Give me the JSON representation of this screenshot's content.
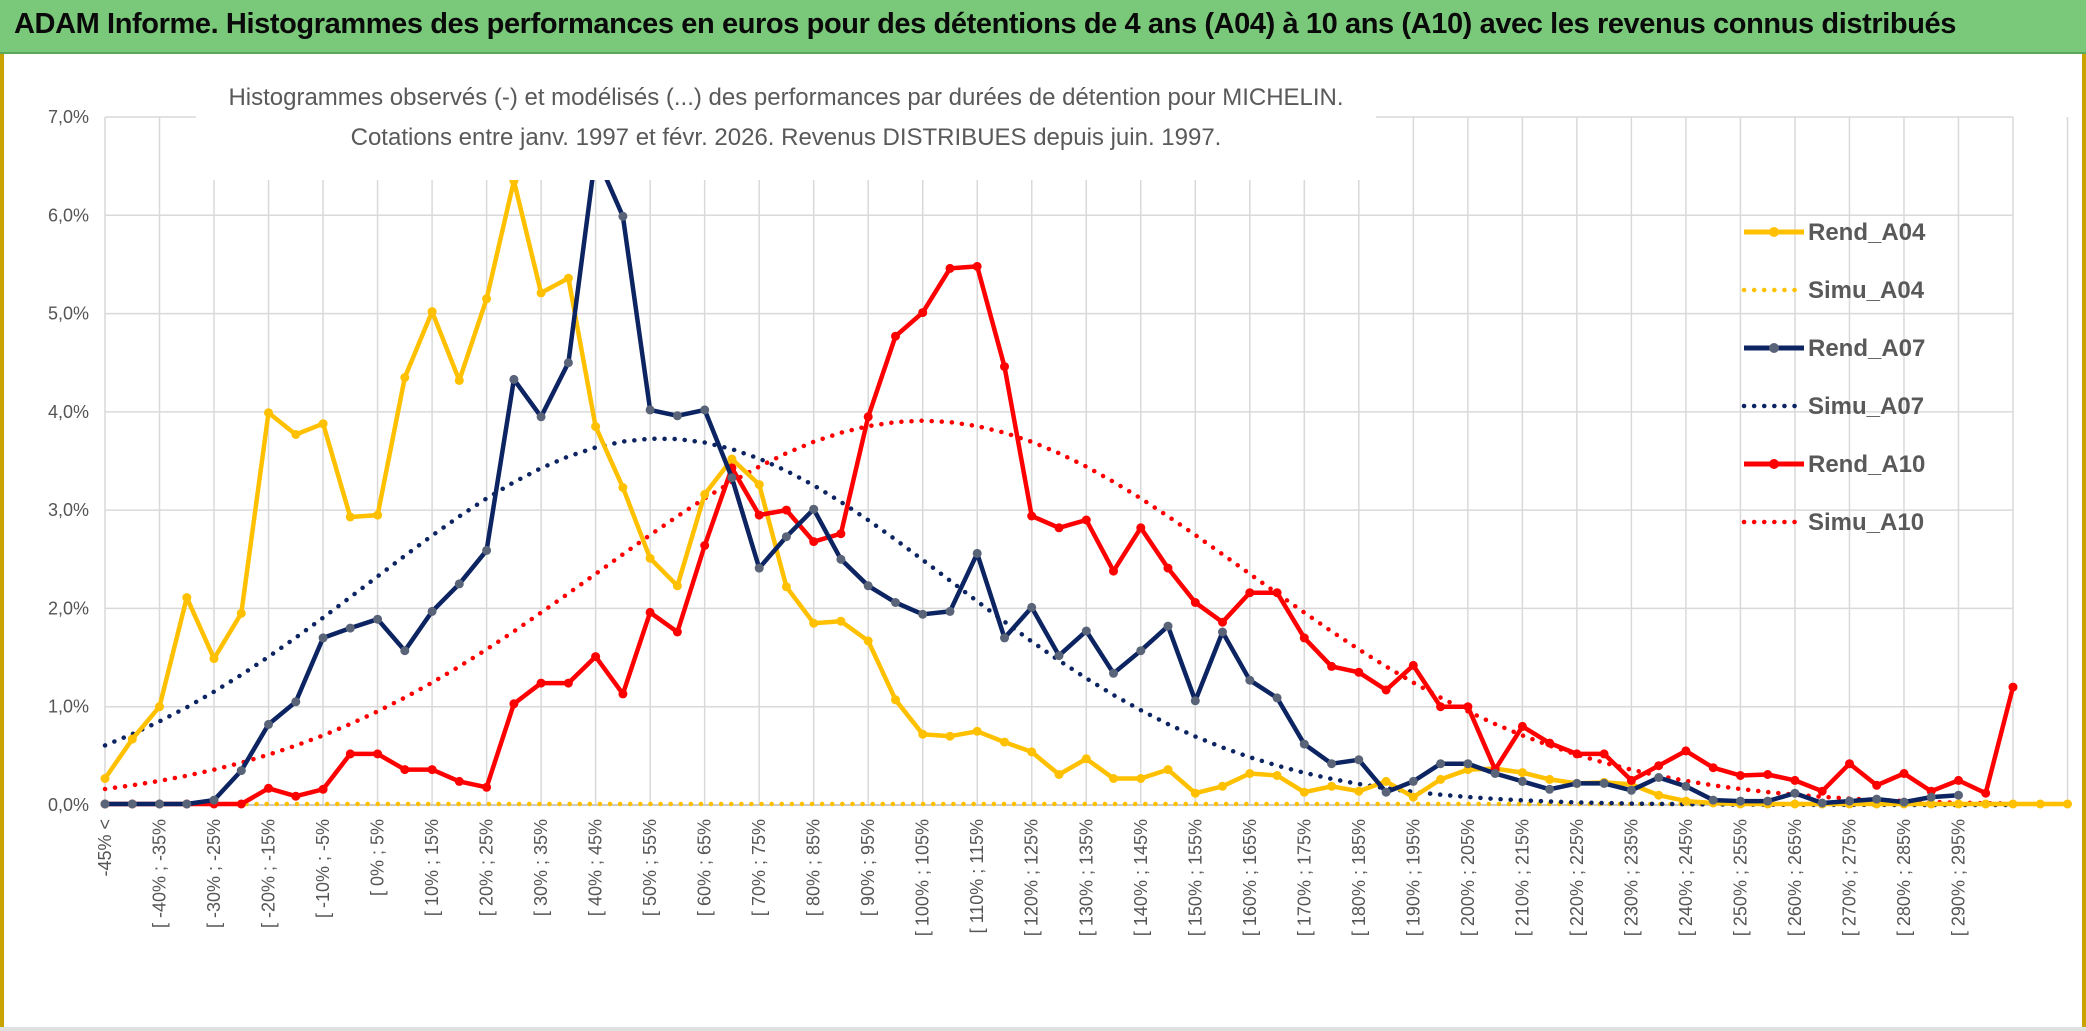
{
  "header": {
    "banner_title": "ADAM Informe. Histogrammes des performances en euros pour des détentions de 4 ans (A04) à 10 ans (A10) avec les revenus connus distribués"
  },
  "colors": {
    "banner": "#7ac97a",
    "A04": "#ffc000",
    "A07": "#0c2461",
    "A10": "#ff0000",
    "markerA07": "#5a6478"
  },
  "chart_data": {
    "type": "line",
    "title": "Histogrammes observés (-) et modélisés (...) des performances par durées de détention pour MICHELIN.",
    "subtitle": "Cotations entre janv. 1997 et févr. 2026. Revenus DISTRIBUES depuis juin. 1997.",
    "xlabel": "",
    "ylabel": "",
    "ylim": [
      0,
      7.0
    ],
    "y_ticks": [
      "0,0%",
      "1,0%",
      "2,0%",
      "3,0%",
      "4,0%",
      "5,0%",
      "6,0%",
      "7,0%"
    ],
    "x_ticks": [
      "-45% <",
      "[ -40% ; -35%",
      "[ -30% ; -25%",
      "[ -20% ; -15%",
      "[ -10% ; -5%",
      "[ 0% ; 5%",
      "[ 10% ; 15%",
      "[ 20% ; 25%",
      "[ 30% ; 35%",
      "[ 40% ; 45%",
      "[ 50% ; 55%",
      "[ 60% ; 65%",
      "[ 70% ; 75%",
      "[ 80% ; 85%",
      "[ 90% ; 95%",
      "[ 100% ; 105%",
      "[ 110% ; 115%",
      "[ 120% ; 125%",
      "[ 130% ; 135%",
      "[ 140% ; 145%",
      "[ 150% ; 155%",
      "[ 160% ; 165%",
      "[ 170% ; 175%",
      "[ 180% ; 185%",
      "[ 190% ; 195%",
      "[ 200% ; 205%",
      "[ 210% ; 215%",
      "[ 220% ; 225%",
      "[ 230% ; 235%",
      "[ 240% ; 245%",
      "[ 250% ; 255%",
      "[ 260% ; 265%",
      "[ 270% ; 275%",
      "[ 280% ; 285%",
      "[ 290% ; 295%"
    ],
    "grid": true,
    "legend_position": "right",
    "series": [
      {
        "name": "Rend_A04",
        "style": "solid",
        "color": "#ffc000",
        "values": [
          0.27,
          0.67,
          1.0,
          2.11,
          1.49,
          1.95,
          3.99,
          3.77,
          3.88,
          2.93,
          2.95,
          4.35,
          5.02,
          4.32,
          5.15,
          6.35,
          5.21,
          5.36,
          3.85,
          3.23,
          2.51,
          2.23,
          3.16,
          3.52,
          3.26,
          2.22,
          1.85,
          1.87,
          1.67,
          1.07,
          0.72,
          0.7,
          0.75,
          0.64,
          0.54,
          0.31,
          0.47,
          0.27,
          0.27,
          0.36,
          0.12,
          0.19,
          0.32,
          0.3,
          0.13,
          0.19,
          0.14,
          0.24,
          0.08,
          0.26,
          0.36,
          0.37,
          0.33,
          0.26,
          0.22,
          0.23,
          0.21,
          0.1,
          0.04,
          0.02,
          0.01,
          0.01,
          0.01,
          0.01,
          0.01,
          0.01,
          0.01,
          0.01,
          0.01,
          0.01,
          0.01,
          0.01,
          0.01
        ]
      },
      {
        "name": "Simu_A04",
        "style": "dotted",
        "color": "#ffc000",
        "values": [
          0.01,
          0.01,
          0.01,
          0.01,
          0.01,
          0.01,
          0.01,
          0.01,
          0.01,
          0.01,
          0.01,
          0.01,
          0.01,
          0.01,
          0.01,
          0.01,
          0.01,
          0.01,
          0.01,
          0.01,
          0.01,
          0.01,
          0.01,
          0.01,
          0.01,
          0.01,
          0.01,
          0.01,
          0.01,
          0.01,
          0.01,
          0.01,
          0.01,
          0.01,
          0.01,
          0.01,
          0.01,
          0.01,
          0.01,
          0.01,
          0.01,
          0.01,
          0.01,
          0.01,
          0.01,
          0.01,
          0.01,
          0.01,
          0.01,
          0.01,
          0.01,
          0.01,
          0.01,
          0.01,
          0.01,
          0.01,
          0.01,
          0.01,
          0.01,
          0.01,
          0.01,
          0.01,
          0.01,
          0.01,
          0.01,
          0.01,
          0.01,
          0.01,
          0.01,
          0.01,
          0.01,
          0.01,
          0.01
        ]
      },
      {
        "name": "Rend_A07",
        "style": "solid",
        "color": "#0c2461",
        "values": [
          0.01,
          0.01,
          0.01,
          0.01,
          0.05,
          0.35,
          0.82,
          1.05,
          1.7,
          1.8,
          1.89,
          1.57,
          1.97,
          2.25,
          2.59,
          4.33,
          3.95,
          4.5,
          6.62,
          5.99,
          4.02,
          3.96,
          4.02,
          3.33,
          2.41,
          2.73,
          3.01,
          2.5,
          2.23,
          2.06,
          1.94,
          1.97,
          2.56,
          1.7,
          2.01,
          1.52,
          1.77,
          1.34,
          1.57,
          1.82,
          1.06,
          1.76,
          1.27,
          1.09,
          0.62,
          0.42,
          0.46,
          0.13,
          0.24,
          0.42,
          0.42,
          0.32,
          0.24,
          0.16,
          0.22,
          0.22,
          0.15,
          0.28,
          0.19,
          0.05,
          0.04,
          0.04,
          0.12,
          0.02,
          0.04,
          0.06,
          0.03,
          0.08,
          0.1
        ]
      },
      {
        "name": "Simu_A07",
        "style": "dotted",
        "color": "#0c2461",
        "mean_pct": 57,
        "peak_pct": 3.73,
        "sigma_pct": 53.5
      },
      {
        "name": "Rend_A10",
        "style": "solid",
        "color": "#ff0000",
        "values": [
          0.01,
          0.01,
          0.01,
          0.01,
          0.01,
          0.01,
          0.17,
          0.09,
          0.16,
          0.52,
          0.52,
          0.36,
          0.36,
          0.24,
          0.18,
          1.03,
          1.24,
          1.24,
          1.51,
          1.13,
          1.96,
          1.76,
          2.64,
          3.43,
          2.95,
          3.0,
          2.68,
          2.76,
          3.95,
          4.77,
          5.01,
          5.46,
          5.48,
          4.46,
          2.94,
          2.82,
          2.9,
          2.38,
          2.82,
          2.41,
          2.06,
          1.86,
          2.16,
          2.16,
          1.7,
          1.41,
          1.35,
          1.17,
          1.42,
          1.0,
          1.0,
          0.36,
          0.8,
          0.63,
          0.52,
          0.52,
          0.25,
          0.4,
          0.55,
          0.38,
          0.3,
          0.31,
          0.25,
          0.14,
          0.42,
          0.2,
          0.32,
          0.14,
          0.25,
          0.12,
          1.2
        ]
      },
      {
        "name": "Simu_A10",
        "style": "dotted",
        "color": "#ff0000",
        "mean_pct": 105,
        "peak_pct": 3.91,
        "sigma_pct": 59.5
      }
    ]
  }
}
